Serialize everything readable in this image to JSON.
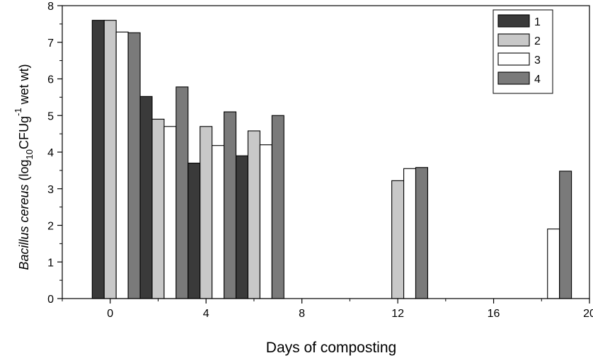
{
  "chart_data": {
    "type": "bar",
    "xlabel": "Days of composting",
    "ylabel": {
      "italic": "Bacillus cereus",
      "open": " (log",
      "sub": "10",
      "mid": "CFUg",
      "sup": "-1",
      "close": " wet wt)"
    },
    "xlim": [
      -2,
      20
    ],
    "ylim": [
      0,
      8
    ],
    "xticks": [
      0,
      4,
      8,
      12,
      16,
      20
    ],
    "yticks": [
      0,
      1,
      2,
      3,
      4,
      5,
      6,
      7,
      8
    ],
    "x": [
      0,
      2,
      4,
      6,
      12,
      18
    ],
    "legend_position": "top-right",
    "series": [
      {
        "name": "1",
        "color": "#3a3a3a",
        "values": [
          7.6,
          5.52,
          3.7,
          3.9,
          null,
          null
        ]
      },
      {
        "name": "2",
        "color": "#c8c8c8",
        "values": [
          7.6,
          4.9,
          4.7,
          4.58,
          3.22,
          null
        ]
      },
      {
        "name": "3",
        "color": "#ffffff",
        "values": [
          7.28,
          4.7,
          4.18,
          4.2,
          3.55,
          1.9
        ]
      },
      {
        "name": "4",
        "color": "#7a7a7a",
        "values": [
          7.26,
          5.78,
          5.1,
          5.0,
          3.58,
          3.48
        ]
      }
    ]
  }
}
